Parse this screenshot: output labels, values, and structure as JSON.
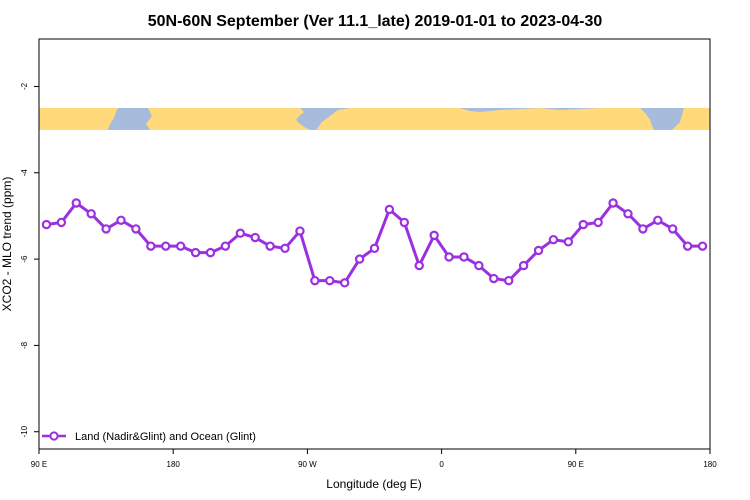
{
  "chart_data": {
    "type": "line",
    "title": "50N-60N September (Ver 11.1_late)   2019-01-01 to 2023-04-30",
    "xlabel": "Longitude (deg E)",
    "ylabel": "XCO2 - MLO trend (ppm)",
    "x_ticks": [
      {
        "value": 90,
        "label": "90 E"
      },
      {
        "value": 180,
        "label": "180"
      },
      {
        "value": 270,
        "label": "90 W"
      },
      {
        "value": 360,
        "label": "0"
      },
      {
        "value": 450,
        "label": "90 E"
      },
      {
        "value": 540,
        "label": "180"
      }
    ],
    "y_ticks": [
      -2,
      -4,
      -6,
      -8,
      -10
    ],
    "xlim": [
      90,
      540
    ],
    "ylim": [
      -10.4,
      -0.9
    ],
    "grid": false,
    "legend_position": "bottom-left",
    "colors": {
      "series": "#9b30e0",
      "land": "#ffd97a",
      "ocean": "#a7bcdc"
    },
    "series": [
      {
        "name": "Land (Nadir&Glint) and Ocean (Glint)",
        "x": [
          95,
          105,
          115,
          125,
          135,
          145,
          155,
          165,
          175,
          185,
          195,
          205,
          215,
          225,
          235,
          245,
          255,
          265,
          275,
          285,
          295,
          305,
          315,
          325,
          335,
          345,
          355,
          365,
          375,
          385,
          395,
          405,
          415,
          425,
          435,
          445,
          455,
          465,
          475,
          485,
          495,
          505,
          515,
          525,
          535
        ],
        "y": [
          -5.2,
          -5.15,
          -4.7,
          -4.95,
          -5.3,
          -5.1,
          -5.3,
          -5.7,
          -5.7,
          -5.7,
          -5.85,
          -5.85,
          -5.7,
          -5.4,
          -5.5,
          -5.7,
          -5.75,
          -5.35,
          -6.5,
          -6.5,
          -6.55,
          -6.0,
          -5.75,
          -4.85,
          -5.15,
          -6.15,
          -5.45,
          -5.95,
          -5.95,
          -6.15,
          -6.45,
          -6.5,
          -6.15,
          -5.8,
          -5.55,
          -5.6,
          -5.2,
          -5.15,
          -4.7,
          -4.95,
          -5.3,
          -5.1,
          -5.3,
          -5.7,
          -5.7
        ]
      }
    ]
  }
}
